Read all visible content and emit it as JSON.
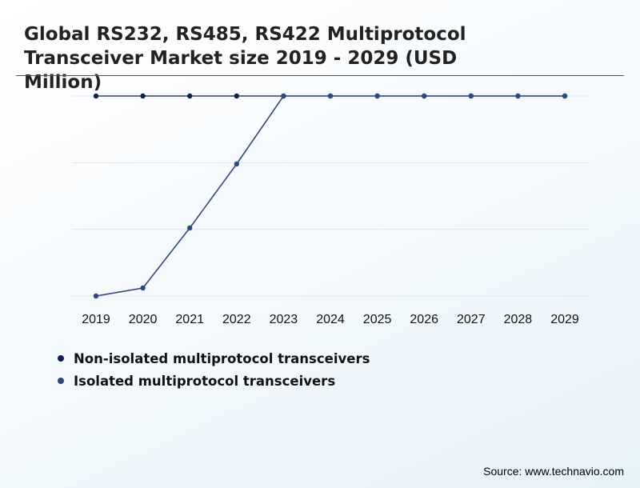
{
  "title": "Global RS232, RS485, RS422 Multiprotocol Transceiver Market size 2019 - 2029 (USD Million)",
  "source": "Source: www.technavio.com",
  "colors": {
    "non_isolated": "#0b1f4b",
    "isolated": "#2f4a7a",
    "grid": "#e2e8ee"
  },
  "chart_data": {
    "type": "line",
    "title": "Global RS232, RS485, RS422 Multiprotocol Transceiver Market size 2019 - 2029 (USD Million)",
    "xlabel": "",
    "ylabel": "",
    "categories": [
      "2019",
      "2020",
      "2021",
      "2022",
      "2023",
      "2024",
      "2025",
      "2026",
      "2027",
      "2028",
      "2029"
    ],
    "ylim": [
      0,
      100
    ],
    "grid": true,
    "legend": "bottom-left",
    "series": [
      {
        "name": "Non-isolated multiprotocol transceivers",
        "color": "#0b1f4b",
        "values": [
          100,
          100,
          100,
          100,
          100,
          100,
          100,
          100,
          100,
          100,
          100
        ]
      },
      {
        "name": "Isolated multiprotocol transceivers",
        "color": "#2f4a7a",
        "values": [
          0,
          4,
          34,
          66,
          100,
          100,
          100,
          100,
          100,
          100,
          100
        ]
      }
    ]
  }
}
